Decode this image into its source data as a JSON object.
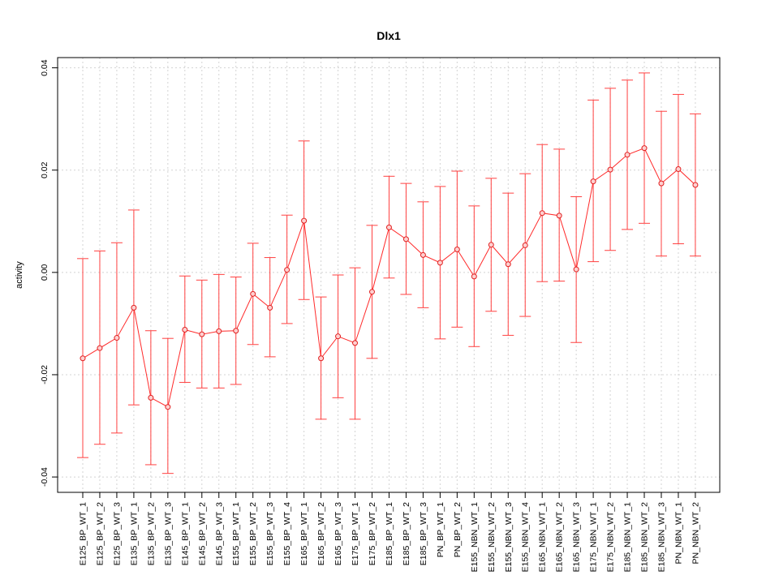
{
  "chart_data": {
    "type": "line",
    "title": "Dlx1",
    "xlabel": "",
    "ylabel": "activity",
    "ylim": [
      -0.043,
      0.042
    ],
    "yticks": [
      -0.04,
      -0.02,
      0.0,
      0.02,
      0.04
    ],
    "ytick_labels": [
      "-0.04",
      "-0.02",
      "0.00",
      "0.02",
      "0.04"
    ],
    "grid": true,
    "colors": {
      "line": "#ff2a2a",
      "error_bar": "#ff4040",
      "point_fill": "#ffd0d0",
      "grid": "#d3d3d3"
    },
    "categories": [
      "E125_BP_WT_1",
      "E125_BP_WT_2",
      "E125_BP_WT_3",
      "E135_BP_WT_1",
      "E135_BP_WT_2",
      "E135_BP_WT_3",
      "E145_BP_WT_1",
      "E145_BP_WT_2",
      "E145_BP_WT_3",
      "E155_BP_WT_1",
      "E155_BP_WT_2",
      "E155_BP_WT_3",
      "E155_BP_WT_4",
      "E165_BP_WT_1",
      "E165_BP_WT_2",
      "E165_BP_WT_3",
      "E175_BP_WT_1",
      "E175_BP_WT_2",
      "E185_BP_WT_1",
      "E185_BP_WT_2",
      "E185_BP_WT_3",
      "PN_BP_WT_1",
      "PN_BP_WT_2",
      "E155_NBN_WT_1",
      "E155_NBN_WT_2",
      "E155_NBN_WT_3",
      "E155_NBN_WT_4",
      "E165_NBN_WT_1",
      "E165_NBN_WT_2",
      "E165_NBN_WT_3",
      "E175_NBN_WT_1",
      "E175_NBN_WT_2",
      "E185_NBN_WT_1",
      "E185_NBN_WT_2",
      "E185_NBN_WT_3",
      "PN_NBN_WT_1",
      "PN_NBN_WT_2"
    ],
    "series": [
      {
        "values": [
          -0.0168,
          -0.0148,
          -0.0128,
          -0.0069,
          -0.0245,
          -0.0263,
          -0.0112,
          -0.0121,
          -0.0115,
          -0.0114,
          -0.0042,
          -0.0069,
          0.0005,
          0.0101,
          -0.0168,
          -0.0125,
          -0.0138,
          -0.0038,
          0.0088,
          0.0065,
          0.0034,
          0.0019,
          0.0045,
          -0.0008,
          0.0054,
          0.0016,
          0.0053,
          0.0116,
          0.0111,
          0.0006,
          0.0178,
          0.0201,
          0.023,
          0.0243,
          0.0174,
          0.0202,
          0.0171
        ],
        "lower": [
          -0.0362,
          -0.0336,
          -0.0314,
          -0.0259,
          -0.0376,
          -0.0393,
          -0.0215,
          -0.0226,
          -0.0226,
          -0.0219,
          -0.0141,
          -0.0165,
          -0.01,
          -0.0053,
          -0.0287,
          -0.0245,
          -0.0287,
          -0.0168,
          -0.0011,
          -0.0043,
          -0.0069,
          -0.013,
          -0.0107,
          -0.0145,
          -0.0076,
          -0.0123,
          -0.0086,
          -0.0018,
          -0.0017,
          -0.0137,
          0.0021,
          0.0043,
          0.0084,
          0.0096,
          0.0032,
          0.0056,
          0.0032
        ],
        "upper": [
          0.0027,
          0.0042,
          0.0058,
          0.0122,
          -0.0114,
          -0.0129,
          -0.0007,
          -0.0015,
          -0.0004,
          -0.0009,
          0.0057,
          0.0029,
          0.0112,
          0.0257,
          -0.0048,
          -0.0005,
          0.0009,
          0.0092,
          0.0188,
          0.0174,
          0.0138,
          0.0168,
          0.0198,
          0.013,
          0.0184,
          0.0155,
          0.0193,
          0.025,
          0.0241,
          0.0148,
          0.0337,
          0.036,
          0.0376,
          0.039,
          0.0315,
          0.0348,
          0.031
        ]
      }
    ]
  }
}
